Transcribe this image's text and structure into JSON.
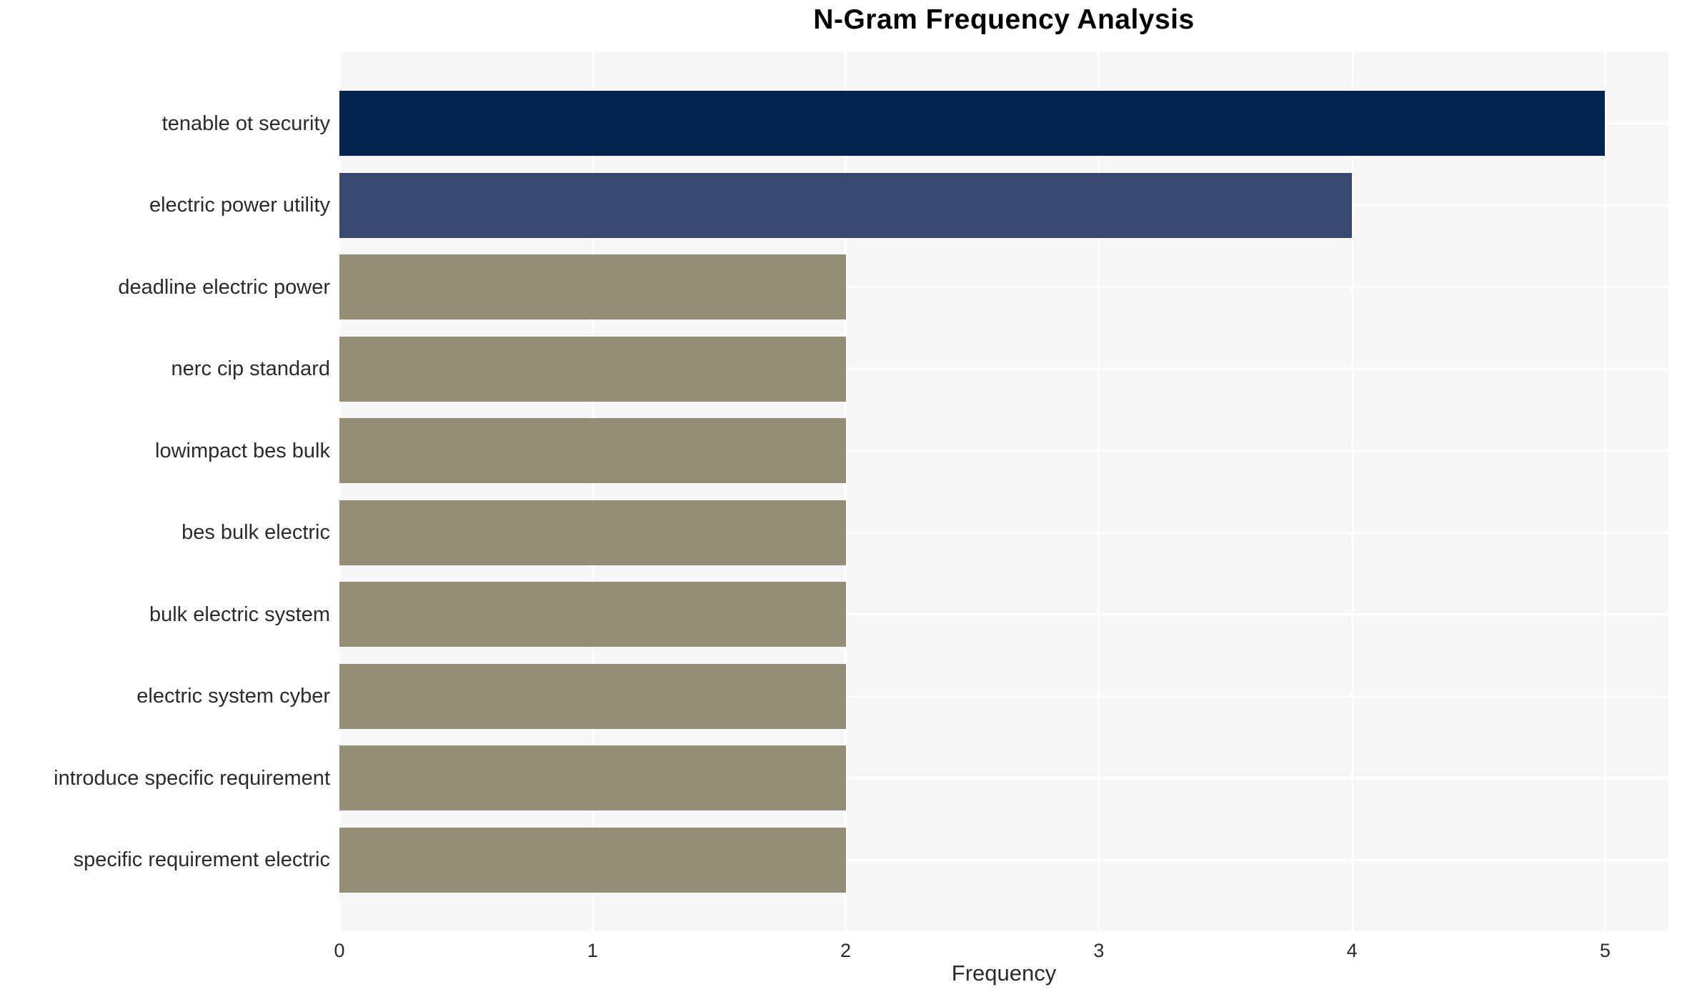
{
  "chart_data": {
    "type": "bar",
    "orientation": "horizontal",
    "title": "N-Gram Frequency Analysis",
    "xlabel": "Frequency",
    "ylabel": "",
    "categories": [
      "tenable ot security",
      "electric power utility",
      "deadline electric power",
      "nerc cip standard",
      "lowimpact bes bulk",
      "bes bulk electric",
      "bulk electric system",
      "electric system cyber",
      "introduce specific requirement",
      "specific requirement electric"
    ],
    "values": [
      5,
      4,
      2,
      2,
      2,
      2,
      2,
      2,
      2,
      2
    ],
    "bar_colors": [
      "#032350",
      "#37496f",
      "#948e76",
      "#948e76",
      "#948e76",
      "#948e76",
      "#948e76",
      "#948e76",
      "#948e76",
      "#948e76"
    ],
    "xticks": [
      "0",
      "1",
      "2",
      "3",
      "4",
      "5"
    ],
    "xlim": [
      0,
      5.25
    ],
    "grid": true,
    "legend": false,
    "colors": {
      "plot_bg": "#f7f7f7",
      "grid": "#ffffff",
      "text": "#2b2b2b",
      "title": "#000000"
    }
  }
}
